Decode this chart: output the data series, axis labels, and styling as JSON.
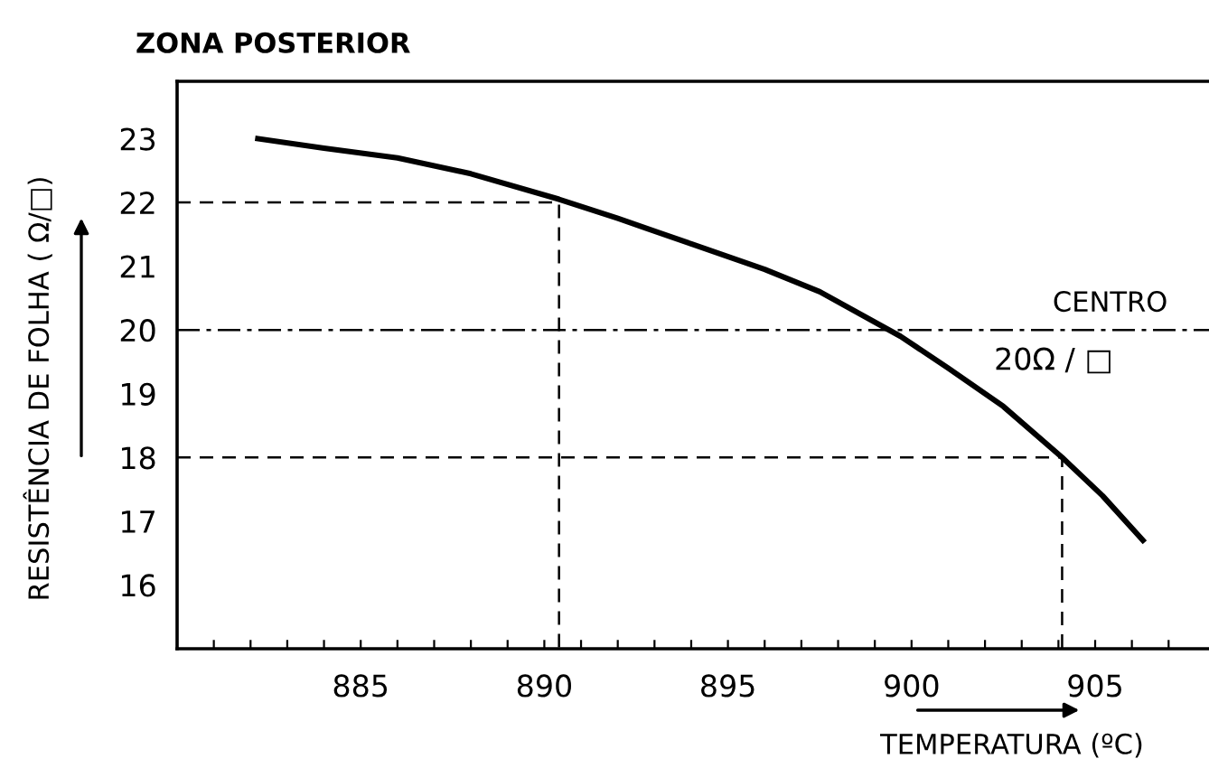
{
  "chart_data": {
    "type": "line",
    "title": "ZONA POSTERIOR",
    "xlabel": "TEMPERATURA (ºC)",
    "ylabel": "RESISTÊNCIA DE FOLHA ( Ω/□)",
    "series": [
      {
        "color": "#000000",
        "line_style": "solid",
        "x": [
          882.2,
          884,
          886,
          888,
          890.4,
          892,
          894,
          896,
          897.5,
          899.7,
          901,
          902.5,
          904.1,
          905.2,
          906.3
        ],
        "values": [
          23.0,
          22.85,
          22.7,
          22.45,
          22.05,
          21.75,
          21.35,
          20.95,
          20.6,
          19.9,
          19.4,
          18.8,
          18.0,
          17.4,
          16.7
        ]
      },
      {
        "color": "#000000",
        "line_style": "dashed",
        "x": [
          880,
          890.4,
          890.4
        ],
        "values": [
          22,
          22,
          15
        ]
      },
      {
        "color": "#000000",
        "line_style": "dashed",
        "x": [
          880,
          904.1,
          904.1
        ],
        "values": [
          18,
          18,
          15
        ]
      }
    ],
    "ref_lines": [
      {
        "axis": "y",
        "value": 20,
        "label": "CENTRO",
        "line_style": "dashdot",
        "color": "#000000"
      }
    ],
    "annotations": [
      "20Ω / □"
    ],
    "xlim": [
      880,
      908.1
    ],
    "ylim": [
      15,
      23.9
    ],
    "xticks": [
      {
        "value": 881,
        "label": null
      },
      {
        "value": 882,
        "label": null
      },
      {
        "value": 883,
        "label": null
      },
      {
        "value": 884,
        "label": null
      },
      885,
      {
        "value": 886,
        "label": null
      },
      {
        "value": 887,
        "label": null
      },
      {
        "value": 888,
        "label": null
      },
      {
        "value": 889,
        "label": null
      },
      890,
      {
        "value": 891,
        "label": null
      },
      {
        "value": 892,
        "label": null
      },
      {
        "value": 893,
        "label": null
      },
      {
        "value": 894,
        "label": null
      },
      895,
      {
        "value": 896,
        "label": null
      },
      {
        "value": 897,
        "label": null
      },
      {
        "value": 898,
        "label": null
      },
      {
        "value": 899,
        "label": null
      },
      900,
      {
        "value": 901,
        "label": null
      },
      {
        "value": 902,
        "label": null
      },
      {
        "value": 903,
        "label": null
      },
      {
        "value": 904,
        "label": null
      },
      905,
      {
        "value": 906,
        "label": null
      },
      {
        "value": 907,
        "label": null
      }
    ],
    "yticks": [
      16,
      17,
      18,
      19,
      20,
      21,
      22,
      23
    ],
    "grid": false,
    "legend": false
  }
}
